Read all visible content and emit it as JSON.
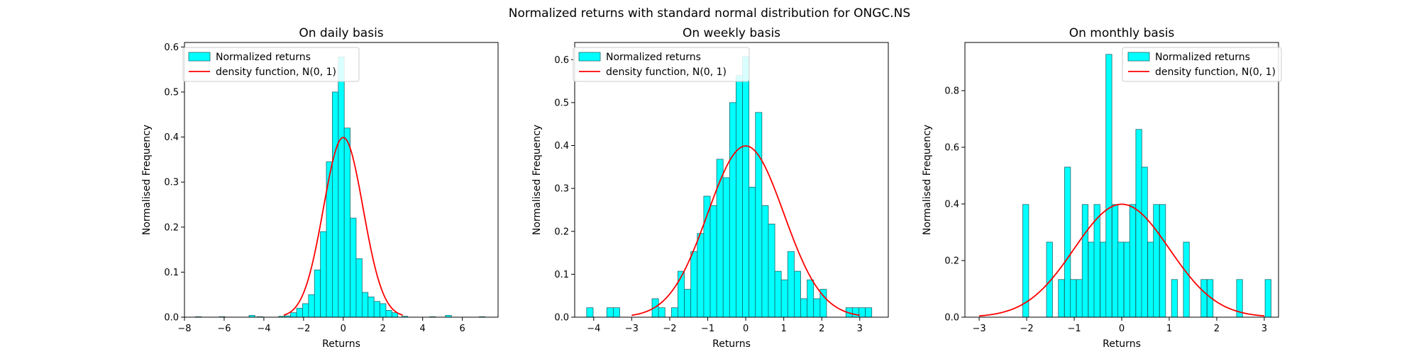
{
  "figure": {
    "title": "Normalized returns with standard normal distribution for ONGC.NS"
  },
  "colors": {
    "bar_fill": "#00ffff",
    "bar_edge": "#1c6a6a",
    "curve": "#ff0000",
    "axes": "#000000",
    "legend_edge": "#cccccc"
  },
  "legend": {
    "hist_label": "Normalized returns",
    "curve_label": "density function, N(0, 1)"
  },
  "chart_data": [
    {
      "type": "bar",
      "title": "On daily basis",
      "xlabel": "Returns",
      "ylabel": "Normalised Frequency",
      "xlim": [
        -8,
        7.8
      ],
      "ylim": [
        0,
        0.61
      ],
      "xticks": [
        -8,
        -6,
        -4,
        -2,
        0,
        2,
        4,
        6
      ],
      "yticks": [
        0.0,
        0.1,
        0.2,
        0.3,
        0.4,
        0.5,
        0.6
      ],
      "legend_position": "upper-left",
      "bin_width": 0.3,
      "bins": [
        {
          "x": -7.3,
          "y": 0.001
        },
        {
          "x": -6.1,
          "y": 0.001
        },
        {
          "x": -4.6,
          "y": 0.004
        },
        {
          "x": -4.2,
          "y": 0.001
        },
        {
          "x": -3.1,
          "y": 0.002
        },
        {
          "x": -2.8,
          "y": 0.003
        },
        {
          "x": -2.5,
          "y": 0.01
        },
        {
          "x": -2.2,
          "y": 0.02
        },
        {
          "x": -1.9,
          "y": 0.03
        },
        {
          "x": -1.6,
          "y": 0.05
        },
        {
          "x": -1.3,
          "y": 0.105
        },
        {
          "x": -1.0,
          "y": 0.19
        },
        {
          "x": -0.7,
          "y": 0.345
        },
        {
          "x": -0.4,
          "y": 0.5
        },
        {
          "x": -0.1,
          "y": 0.578
        },
        {
          "x": 0.2,
          "y": 0.42
        },
        {
          "x": 0.5,
          "y": 0.22
        },
        {
          "x": 0.8,
          "y": 0.13
        },
        {
          "x": 1.1,
          "y": 0.055
        },
        {
          "x": 1.4,
          "y": 0.045
        },
        {
          "x": 1.7,
          "y": 0.035
        },
        {
          "x": 2.0,
          "y": 0.03
        },
        {
          "x": 2.3,
          "y": 0.015
        },
        {
          "x": 2.6,
          "y": 0.01
        },
        {
          "x": 3.1,
          "y": 0.002
        },
        {
          "x": 4.5,
          "y": 0.001
        },
        {
          "x": 5.3,
          "y": 0.004
        },
        {
          "x": 7.0,
          "y": 0.001
        }
      ],
      "curve_x_range": [
        -3,
        3
      ]
    },
    {
      "type": "bar",
      "title": "On weekly basis",
      "xlabel": "Returns",
      "ylabel": "Normalised Frequency",
      "xlim": [
        -4.5,
        3.75
      ],
      "ylim": [
        0,
        0.64
      ],
      "xticks": [
        -4,
        -3,
        -2,
        -1,
        0,
        1,
        2,
        3
      ],
      "yticks": [
        0.0,
        0.1,
        0.2,
        0.3,
        0.4,
        0.5,
        0.6
      ],
      "legend_position": "upper-left",
      "bin_width": 0.17,
      "bins": [
        {
          "x": -4.1,
          "y": 0.022
        },
        {
          "x": -3.57,
          "y": 0.022
        },
        {
          "x": -3.4,
          "y": 0.022
        },
        {
          "x": -2.38,
          "y": 0.043
        },
        {
          "x": -2.21,
          "y": 0.022
        },
        {
          "x": -1.87,
          "y": 0.022
        },
        {
          "x": -1.7,
          "y": 0.107
        },
        {
          "x": -1.53,
          "y": 0.065
        },
        {
          "x": -1.36,
          "y": 0.153
        },
        {
          "x": -1.19,
          "y": 0.195
        },
        {
          "x": -1.02,
          "y": 0.282
        },
        {
          "x": -0.85,
          "y": 0.26
        },
        {
          "x": -0.68,
          "y": 0.368
        },
        {
          "x": -0.51,
          "y": 0.325
        },
        {
          "x": -0.34,
          "y": 0.5
        },
        {
          "x": -0.17,
          "y": 0.563
        },
        {
          "x": 0.0,
          "y": 0.607
        },
        {
          "x": 0.17,
          "y": 0.303
        },
        {
          "x": 0.34,
          "y": 0.477
        },
        {
          "x": 0.51,
          "y": 0.26
        },
        {
          "x": 0.68,
          "y": 0.217
        },
        {
          "x": 0.85,
          "y": 0.107
        },
        {
          "x": 1.02,
          "y": 0.087
        },
        {
          "x": 1.19,
          "y": 0.153
        },
        {
          "x": 1.36,
          "y": 0.107
        },
        {
          "x": 1.53,
          "y": 0.043
        },
        {
          "x": 1.7,
          "y": 0.087
        },
        {
          "x": 1.87,
          "y": 0.043
        },
        {
          "x": 2.04,
          "y": 0.065
        },
        {
          "x": 2.72,
          "y": 0.022
        },
        {
          "x": 2.89,
          "y": 0.022
        },
        {
          "x": 3.06,
          "y": 0.022
        },
        {
          "x": 3.23,
          "y": 0.022
        }
      ],
      "curve_x_range": [
        -3,
        3
      ]
    },
    {
      "type": "bar",
      "title": "On monthly basis",
      "xlabel": "Returns",
      "ylabel": "Normalised Frequency",
      "xlim": [
        -3.3,
        3.3
      ],
      "ylim": [
        0,
        0.97
      ],
      "xticks": [
        -3,
        -2,
        -1,
        0,
        1,
        2,
        3
      ],
      "yticks": [
        0.0,
        0.2,
        0.4,
        0.6,
        0.8
      ],
      "legend_position": "upper-right",
      "bin_width": 0.125,
      "bins": [
        {
          "x": -2.02,
          "y": 0.398
        },
        {
          "x": -1.52,
          "y": 0.265
        },
        {
          "x": -1.27,
          "y": 0.133
        },
        {
          "x": -1.14,
          "y": 0.53
        },
        {
          "x": -1.02,
          "y": 0.133
        },
        {
          "x": -0.89,
          "y": 0.133
        },
        {
          "x": -0.77,
          "y": 0.398
        },
        {
          "x": -0.64,
          "y": 0.265
        },
        {
          "x": -0.52,
          "y": 0.398
        },
        {
          "x": -0.39,
          "y": 0.265
        },
        {
          "x": -0.27,
          "y": 0.928
        },
        {
          "x": -0.14,
          "y": 0.398
        },
        {
          "x": -0.02,
          "y": 0.265
        },
        {
          "x": 0.11,
          "y": 0.265
        },
        {
          "x": 0.23,
          "y": 0.398
        },
        {
          "x": 0.36,
          "y": 0.663
        },
        {
          "x": 0.48,
          "y": 0.53
        },
        {
          "x": 0.61,
          "y": 0.265
        },
        {
          "x": 0.73,
          "y": 0.398
        },
        {
          "x": 0.86,
          "y": 0.398
        },
        {
          "x": 1.11,
          "y": 0.133
        },
        {
          "x": 1.36,
          "y": 0.265
        },
        {
          "x": 1.73,
          "y": 0.133
        },
        {
          "x": 1.86,
          "y": 0.133
        },
        {
          "x": 2.48,
          "y": 0.133
        },
        {
          "x": 3.08,
          "y": 0.133
        }
      ],
      "curve_x_range": [
        -3,
        3
      ]
    }
  ]
}
